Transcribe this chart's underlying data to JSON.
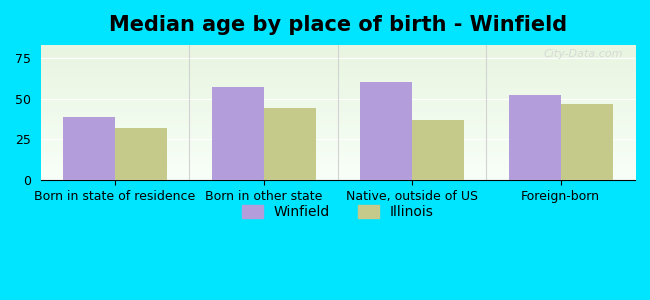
{
  "title": "Median age by place of birth - Winfield",
  "categories": [
    "Born in state of residence",
    "Born in other state",
    "Native, outside of US",
    "Foreign-born"
  ],
  "winfield_values": [
    39,
    57,
    60,
    52
  ],
  "illinois_values": [
    32,
    44,
    37,
    47
  ],
  "winfield_color": "#b39ddb",
  "illinois_color": "#c5c98a",
  "background_outer": "#00e5ff",
  "background_inner_top": "#f0f8f0",
  "background_inner_bottom": "#e8f5e0",
  "ylim": [
    0,
    83
  ],
  "yticks": [
    0,
    25,
    50,
    75
  ],
  "legend_labels": [
    "Winfield",
    "Illinois"
  ],
  "bar_width": 0.35,
  "title_fontsize": 15,
  "tick_fontsize": 9,
  "legend_fontsize": 10
}
